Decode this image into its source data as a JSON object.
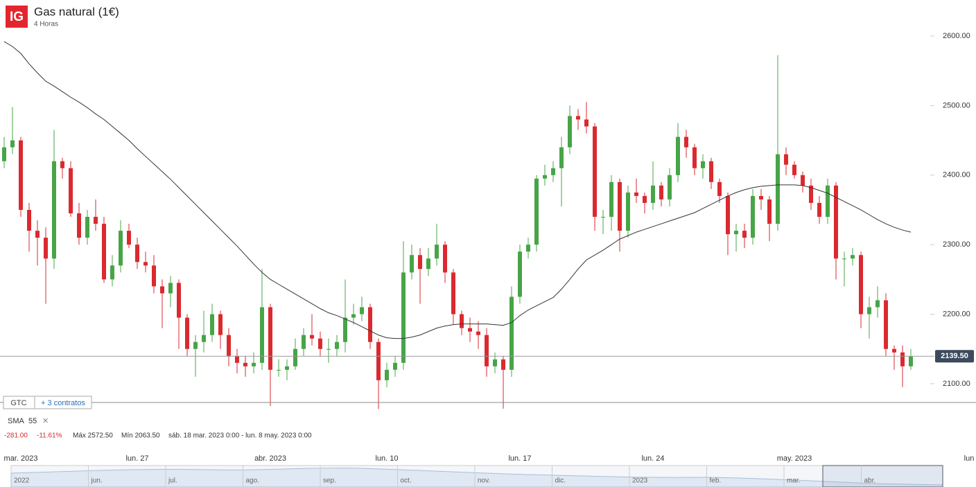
{
  "header": {
    "logo": "IG",
    "title": "Gas natural (1€)",
    "interval": "4 Horas"
  },
  "order_bar": {
    "tif": "GTC",
    "contracts": "+ 3 contratos"
  },
  "chart_data": {
    "type": "candlestick",
    "categories": [
      null,
      null,
      "mar. 2023",
      null,
      null,
      null,
      null,
      null,
      null,
      null,
      null,
      null,
      null,
      null,
      null,
      null,
      "lun. 27",
      null,
      null,
      null,
      null,
      null,
      null,
      null,
      null,
      null,
      null,
      null,
      null,
      null,
      null,
      null,
      "abr. 2023",
      null,
      null,
      null,
      null,
      null,
      null,
      null,
      null,
      null,
      null,
      null,
      null,
      null,
      "lun. 10",
      null,
      null,
      null,
      null,
      null,
      null,
      null,
      null,
      null,
      null,
      null,
      null,
      null,
      null,
      null,
      "lun. 17",
      null,
      null,
      null,
      null,
      null,
      null,
      null,
      null,
      null,
      null,
      null,
      null,
      null,
      null,
      null,
      "lun. 24",
      null,
      null,
      null,
      null,
      null,
      null,
      null,
      null,
      null,
      null,
      null,
      null,
      null,
      null,
      null,
      null,
      "may. 2023",
      null,
      null,
      null,
      null,
      null,
      null,
      null,
      null,
      null,
      null,
      null,
      null,
      null,
      null,
      null,
      null,
      null,
      null,
      null,
      null,
      "lun"
    ],
    "open": [
      2420,
      2440,
      2450,
      2350,
      2320,
      2310,
      2280,
      2420,
      2410,
      2345,
      2310,
      2340,
      2330,
      2250,
      2270,
      2320,
      2300,
      2275,
      2270,
      2240,
      2230,
      2245,
      2195,
      2150,
      2160,
      2170,
      2200,
      2170,
      2140,
      2130,
      2125,
      2130,
      2210,
      2120,
      2120,
      2125,
      2150,
      2170,
      2165,
      2150,
      2150,
      2160,
      2195,
      2200,
      2210,
      2160,
      2105,
      2120,
      2130,
      2260,
      2285,
      2265,
      2280,
      2300,
      2260,
      2200,
      2180,
      2175,
      2170,
      2125,
      2135,
      2120,
      2225,
      2290,
      2300,
      2395,
      2400,
      2410,
      2440,
      2485,
      2480,
      2470,
      2340,
      2340,
      2390,
      2320,
      2375,
      2370,
      2360,
      2385,
      2365,
      2400,
      2455,
      2440,
      2410,
      2420,
      2390,
      2370,
      2315,
      2320,
      2310,
      2370,
      2365,
      2330,
      2430,
      2415,
      2400,
      2385,
      2360,
      2340,
      2385,
      2280,
      2280,
      2285,
      2200,
      2210,
      2220,
      2150,
      2145,
      2125,
      null,
      null,
      null,
      null,
      null,
      null,
      null
    ],
    "high": [
      2455,
      2498,
      2455,
      2360,
      2335,
      2325,
      2465,
      2425,
      2420,
      2360,
      2350,
      2365,
      2340,
      2285,
      2335,
      2330,
      2310,
      2290,
      2285,
      2250,
      2255,
      2250,
      2200,
      2170,
      2205,
      2215,
      2205,
      2180,
      2150,
      2140,
      2145,
      2265,
      2215,
      2135,
      2135,
      2165,
      2180,
      2200,
      2175,
      2165,
      2170,
      2250,
      2215,
      2225,
      2215,
      2165,
      2130,
      2140,
      2305,
      2300,
      2295,
      2295,
      2330,
      2305,
      2265,
      2205,
      2195,
      2190,
      2180,
      2145,
      2140,
      2240,
      2300,
      2310,
      2400,
      2415,
      2420,
      2455,
      2500,
      2495,
      2505,
      2475,
      2350,
      2400,
      2395,
      2385,
      2395,
      2375,
      2420,
      2390,
      2410,
      2475,
      2465,
      2445,
      2430,
      2425,
      2395,
      2375,
      2330,
      2330,
      2380,
      2380,
      2370,
      2572.5,
      2440,
      2420,
      2405,
      2395,
      2370,
      2395,
      2390,
      2290,
      2295,
      2290,
      2225,
      2240,
      2230,
      2155,
      2155,
      2150,
      null,
      null,
      null,
      null,
      null,
      null,
      null
    ],
    "low": [
      2410,
      2430,
      2340,
      2290,
      2270,
      2215,
      2265,
      2395,
      2340,
      2300,
      2300,
      2320,
      2245,
      2240,
      2260,
      2295,
      2265,
      2260,
      2230,
      2180,
      2210,
      2150,
      2140,
      2110,
      2145,
      2160,
      2150,
      2125,
      2115,
      2110,
      2115,
      2120,
      2068,
      2110,
      2105,
      2120,
      2140,
      2155,
      2140,
      2130,
      2140,
      2145,
      2185,
      2190,
      2150,
      2063.5,
      2095,
      2110,
      2120,
      2250,
      2215,
      2255,
      2270,
      2245,
      2185,
      2170,
      2160,
      2150,
      2110,
      2115,
      2064,
      2110,
      2215,
      2280,
      2290,
      2385,
      2390,
      2355,
      2430,
      2465,
      2460,
      2320,
      2315,
      2320,
      2290,
      2310,
      2360,
      2345,
      2350,
      2355,
      2355,
      2390,
      2425,
      2400,
      2395,
      2380,
      2360,
      2285,
      2290,
      2295,
      2300,
      2350,
      2305,
      2320,
      2400,
      2395,
      2375,
      2350,
      2330,
      2330,
      2250,
      2240,
      2270,
      2180,
      2165,
      2195,
      2140,
      2120,
      2095,
      2120,
      null,
      null,
      null,
      null,
      null,
      null,
      null
    ],
    "close": [
      2440,
      2450,
      2350,
      2320,
      2310,
      2280,
      2420,
      2410,
      2345,
      2310,
      2340,
      2330,
      2250,
      2270,
      2320,
      2300,
      2275,
      2270,
      2240,
      2230,
      2245,
      2195,
      2150,
      2160,
      2170,
      2200,
      2170,
      2140,
      2130,
      2125,
      2130,
      2210,
      2120,
      2120,
      2125,
      2150,
      2170,
      2165,
      2150,
      2150,
      2160,
      2195,
      2200,
      2210,
      2160,
      2105,
      2120,
      2130,
      2260,
      2285,
      2265,
      2280,
      2300,
      2260,
      2200,
      2180,
      2175,
      2170,
      2125,
      2135,
      2120,
      2225,
      2290,
      2300,
      2395,
      2400,
      2410,
      2440,
      2485,
      2480,
      2470,
      2340,
      2340,
      2390,
      2320,
      2375,
      2370,
      2360,
      2385,
      2365,
      2400,
      2455,
      2440,
      2410,
      2420,
      2390,
      2370,
      2315,
      2320,
      2310,
      2370,
      2365,
      2330,
      2430,
      2415,
      2400,
      2385,
      2360,
      2340,
      2385,
      2280,
      2280,
      2285,
      2200,
      2210,
      2220,
      2150,
      2145,
      2125,
      2139.5,
      null,
      null,
      null,
      null,
      null,
      null,
      null
    ],
    "up_color": "#47a447",
    "down_color": "#da2a2f",
    "ylim": [
      2073,
      2612
    ],
    "yticks": [
      {
        "value": 2100,
        "label": "2100.00"
      },
      {
        "value": 2200,
        "label": "2200.00"
      },
      {
        "value": 2300,
        "label": "2300.00"
      },
      {
        "value": 2400,
        "label": "2400.00"
      },
      {
        "value": 2500,
        "label": "2500.00"
      },
      {
        "value": 2600,
        "label": "2600.00"
      }
    ],
    "last_price": {
      "value": 2139.5,
      "label": "2139.50"
    },
    "sma": {
      "name": "SMA",
      "period": 55,
      "color": "#333333",
      "values": [
        2592,
        2585,
        2575,
        2560,
        2547,
        2535,
        2528,
        2520,
        2512,
        2505,
        2497,
        2488,
        2480,
        2470,
        2460,
        2450,
        2438,
        2427,
        2416,
        2405,
        2394,
        2382,
        2370,
        2358,
        2346,
        2334,
        2322,
        2310,
        2298,
        2285,
        2272,
        2260,
        2250,
        2243,
        2236,
        2229,
        2222,
        2215,
        2208,
        2202,
        2198,
        2193,
        2188,
        2182,
        2176,
        2170,
        2166,
        2165,
        2165,
        2167,
        2170,
        2175,
        2180,
        2183,
        2185,
        2186,
        2186,
        2186,
        2186,
        2185,
        2184,
        2188,
        2198,
        2206,
        2212,
        2218,
        2224,
        2236,
        2250,
        2265,
        2278,
        2285,
        2292,
        2300,
        2308,
        2313,
        2318,
        2322,
        2326,
        2330,
        2334,
        2338,
        2342,
        2346,
        2352,
        2358,
        2364,
        2370,
        2375,
        2379,
        2382,
        2384,
        2385,
        2386,
        2386,
        2386,
        2385,
        2382,
        2378,
        2374,
        2368,
        2362,
        2356,
        2350,
        2343,
        2336,
        2330,
        2325,
        2321,
        2318,
        null,
        null,
        null,
        null,
        null,
        null,
        null
      ]
    },
    "stats": {
      "change": {
        "value": -281,
        "label": "-281.00"
      },
      "change_pct": {
        "value": -11.61,
        "label": "-11.61%"
      },
      "max": "Máx 2572.50",
      "min": "Mín 2063.50",
      "range": "sáb. 18 mar. 2023 0:00 - lun. 8 may. 2023 0:00"
    },
    "navigator_labels": [
      "2022",
      "jun.",
      "jul.",
      "ago.",
      "sep.",
      "oct.",
      "nov.",
      "dic.",
      "2023",
      "feb.",
      "mar.",
      "abr."
    ]
  }
}
